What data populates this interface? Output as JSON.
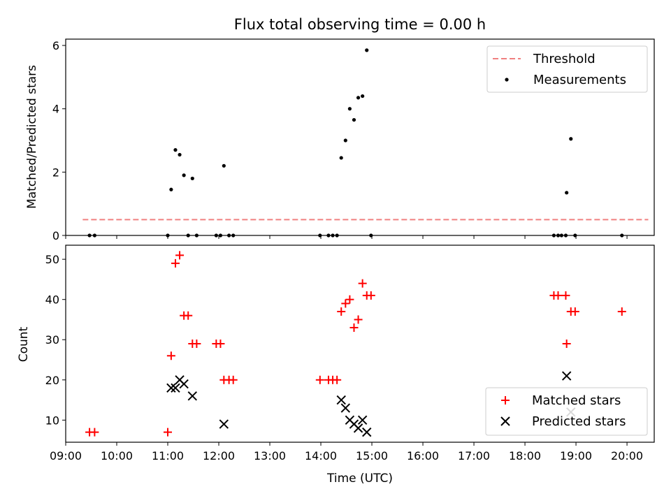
{
  "chart_data": [
    {
      "type": "scatter",
      "title": "Flux total observing time = 0.00 h",
      "ylabel": "Matched/Predicted stars",
      "xlabel": "",
      "ylim": [
        0,
        6.2
      ],
      "xlim": [
        "09:00",
        "20:32"
      ],
      "yticks": [
        "0",
        "2",
        "4",
        "6"
      ],
      "grid": false,
      "legend": {
        "position": "top-right",
        "entries": [
          {
            "label": "Threshold",
            "color": "#f08080",
            "style": "dashed-line"
          },
          {
            "label": "Measurements",
            "color": "#000000",
            "style": "dot"
          }
        ]
      },
      "threshold": {
        "x": [
          "09:20",
          "20:25"
        ],
        "y": 0.5
      },
      "series": [
        {
          "name": "Measurements",
          "color": "#000000",
          "points": [
            {
              "x": "09:28",
              "y": 0
            },
            {
              "x": "09:34",
              "y": 0
            },
            {
              "x": "11:00",
              "y": 0
            },
            {
              "x": "11:04",
              "y": 1.45
            },
            {
              "x": "11:09",
              "y": 2.7
            },
            {
              "x": "11:14",
              "y": 2.55
            },
            {
              "x": "11:19",
              "y": 1.9
            },
            {
              "x": "11:24",
              "y": 0
            },
            {
              "x": "11:29",
              "y": 1.8
            },
            {
              "x": "11:34",
              "y": 0
            },
            {
              "x": "11:57",
              "y": 0
            },
            {
              "x": "12:02",
              "y": 0
            },
            {
              "x": "12:06",
              "y": 2.2
            },
            {
              "x": "12:12",
              "y": 0
            },
            {
              "x": "12:17",
              "y": 0
            },
            {
              "x": "13:59",
              "y": 0
            },
            {
              "x": "14:09",
              "y": 0
            },
            {
              "x": "14:14",
              "y": 0
            },
            {
              "x": "14:19",
              "y": 0
            },
            {
              "x": "14:24",
              "y": 2.45
            },
            {
              "x": "14:29",
              "y": 3.0
            },
            {
              "x": "14:34",
              "y": 4.0
            },
            {
              "x": "14:39",
              "y": 3.65
            },
            {
              "x": "14:44",
              "y": 4.35
            },
            {
              "x": "14:49",
              "y": 4.4
            },
            {
              "x": "14:54",
              "y": 5.85
            },
            {
              "x": "14:59",
              "y": 0
            },
            {
              "x": "18:34",
              "y": 0
            },
            {
              "x": "18:39",
              "y": 0
            },
            {
              "x": "18:43",
              "y": 0
            },
            {
              "x": "18:48",
              "y": 0
            },
            {
              "x": "18:49",
              "y": 1.35
            },
            {
              "x": "18:54",
              "y": 3.05
            },
            {
              "x": "18:59",
              "y": 0
            },
            {
              "x": "19:54",
              "y": 0
            }
          ]
        }
      ]
    },
    {
      "type": "scatter",
      "title": "",
      "ylabel": "Count",
      "xlabel": "Time (UTC)",
      "ylim": [
        4.5,
        53.5
      ],
      "xlim": [
        "09:00",
        "20:32"
      ],
      "yticks": [
        "10",
        "20",
        "30",
        "40",
        "50"
      ],
      "xticks": [
        "09:00",
        "10:00",
        "11:00",
        "12:00",
        "13:00",
        "14:00",
        "15:00",
        "16:00",
        "17:00",
        "18:00",
        "19:00",
        "20:00"
      ],
      "grid": false,
      "legend": {
        "position": "bottom-right",
        "entries": [
          {
            "label": "Matched stars",
            "color": "#ff0000",
            "style": "plus"
          },
          {
            "label": "Predicted stars",
            "color": "#000000",
            "style": "x"
          }
        ]
      },
      "series": [
        {
          "name": "Matched stars",
          "color": "#ff0000",
          "marker": "+",
          "points": [
            {
              "x": "09:28",
              "y": 7
            },
            {
              "x": "09:34",
              "y": 7
            },
            {
              "x": "11:00",
              "y": 7
            },
            {
              "x": "11:04",
              "y": 26
            },
            {
              "x": "11:09",
              "y": 49
            },
            {
              "x": "11:14",
              "y": 51
            },
            {
              "x": "11:19",
              "y": 36
            },
            {
              "x": "11:24",
              "y": 36
            },
            {
              "x": "11:29",
              "y": 29
            },
            {
              "x": "11:34",
              "y": 29
            },
            {
              "x": "11:57",
              "y": 29
            },
            {
              "x": "12:02",
              "y": 29
            },
            {
              "x": "12:06",
              "y": 20
            },
            {
              "x": "12:12",
              "y": 20
            },
            {
              "x": "12:17",
              "y": 20
            },
            {
              "x": "13:59",
              "y": 20
            },
            {
              "x": "14:09",
              "y": 20
            },
            {
              "x": "14:14",
              "y": 20
            },
            {
              "x": "14:19",
              "y": 20
            },
            {
              "x": "14:24",
              "y": 37
            },
            {
              "x": "14:29",
              "y": 39
            },
            {
              "x": "14:34",
              "y": 40
            },
            {
              "x": "14:39",
              "y": 33
            },
            {
              "x": "14:44",
              "y": 35
            },
            {
              "x": "14:49",
              "y": 44
            },
            {
              "x": "14:54",
              "y": 41
            },
            {
              "x": "14:59",
              "y": 41
            },
            {
              "x": "18:34",
              "y": 41
            },
            {
              "x": "18:39",
              "y": 41
            },
            {
              "x": "18:48",
              "y": 41
            },
            {
              "x": "18:49",
              "y": 29
            },
            {
              "x": "18:54",
              "y": 37
            },
            {
              "x": "18:59",
              "y": 37
            },
            {
              "x": "19:54",
              "y": 37
            }
          ]
        },
        {
          "name": "Predicted stars",
          "color": "#000000",
          "marker": "x",
          "points": [
            {
              "x": "11:04",
              "y": 18
            },
            {
              "x": "11:09",
              "y": 18
            },
            {
              "x": "11:14",
              "y": 20
            },
            {
              "x": "11:19",
              "y": 19
            },
            {
              "x": "11:29",
              "y": 16
            },
            {
              "x": "12:06",
              "y": 9
            },
            {
              "x": "14:24",
              "y": 15
            },
            {
              "x": "14:29",
              "y": 13
            },
            {
              "x": "14:34",
              "y": 10
            },
            {
              "x": "14:39",
              "y": 9
            },
            {
              "x": "14:44",
              "y": 8
            },
            {
              "x": "14:49",
              "y": 10
            },
            {
              "x": "14:54",
              "y": 7
            },
            {
              "x": "18:49",
              "y": 21
            },
            {
              "x": "18:54",
              "y": 12
            }
          ]
        }
      ]
    }
  ]
}
